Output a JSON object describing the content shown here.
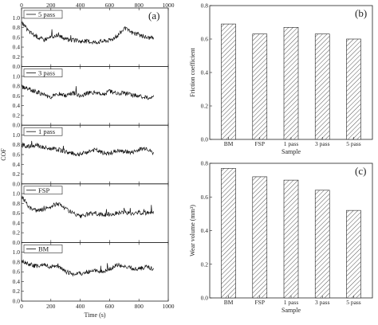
{
  "chart_data": [
    {
      "type": "line",
      "panel_label": "(a)",
      "xlabel": "Time (s)",
      "ylabel": "COF",
      "xlim": [
        0,
        1000
      ],
      "ylim": [
        0.0,
        1.2
      ],
      "x_ticks": [
        "0",
        "200",
        "400",
        "600",
        "800",
        "1000"
      ],
      "y_ticks": [
        "0.0",
        "0.2",
        "0.4",
        "0.6",
        "0.8",
        "1.0"
      ],
      "grid": false,
      "legend": "top-left in each subplot",
      "series": [
        {
          "name": "5 pass",
          "x": [
            0,
            50,
            100,
            150,
            200,
            250,
            300,
            350,
            400,
            450,
            500,
            550,
            600,
            650,
            700,
            750,
            800,
            850,
            900
          ],
          "values": [
            0.9,
            0.72,
            0.62,
            0.55,
            0.6,
            0.66,
            0.56,
            0.54,
            0.52,
            0.52,
            0.5,
            0.52,
            0.54,
            0.62,
            0.78,
            0.7,
            0.65,
            0.6,
            0.58
          ]
        },
        {
          "name": "3 pass",
          "x": [
            0,
            50,
            100,
            150,
            200,
            250,
            300,
            350,
            400,
            450,
            500,
            550,
            600,
            650,
            700,
            750,
            800,
            850,
            900
          ],
          "values": [
            0.78,
            0.74,
            0.68,
            0.62,
            0.58,
            0.64,
            0.6,
            0.66,
            0.6,
            0.65,
            0.68,
            0.62,
            0.7,
            0.64,
            0.66,
            0.62,
            0.6,
            0.56,
            0.58
          ]
        },
        {
          "name": "1 pass",
          "x": [
            0,
            50,
            100,
            150,
            200,
            250,
            300,
            350,
            400,
            450,
            500,
            550,
            600,
            650,
            700,
            750,
            800,
            850,
            900
          ],
          "values": [
            0.8,
            0.76,
            0.8,
            0.74,
            0.72,
            0.7,
            0.66,
            0.62,
            0.6,
            0.66,
            0.7,
            0.64,
            0.62,
            0.68,
            0.66,
            0.64,
            0.7,
            0.74,
            0.62
          ]
        },
        {
          "name": "FSP",
          "x": [
            0,
            50,
            100,
            150,
            200,
            250,
            300,
            350,
            400,
            450,
            500,
            550,
            600,
            650,
            700,
            750,
            800,
            850,
            900
          ],
          "values": [
            0.95,
            0.72,
            0.66,
            0.68,
            0.74,
            0.8,
            0.7,
            0.6,
            0.52,
            0.58,
            0.6,
            0.56,
            0.58,
            0.6,
            0.62,
            0.58,
            0.62,
            0.6,
            0.62
          ]
        },
        {
          "name": "BM",
          "x": [
            0,
            50,
            100,
            150,
            200,
            250,
            300,
            350,
            400,
            450,
            500,
            550,
            600,
            650,
            700,
            750,
            800,
            850,
            900
          ],
          "values": [
            0.82,
            0.76,
            0.72,
            0.74,
            0.7,
            0.72,
            0.6,
            0.56,
            0.56,
            0.6,
            0.62,
            0.6,
            0.66,
            0.74,
            0.7,
            0.68,
            0.66,
            0.7,
            0.66
          ]
        }
      ]
    },
    {
      "type": "bar",
      "panel_label": "(b)",
      "xlabel": "Sample",
      "ylabel": "Friction coefficient",
      "ylim": [
        0.0,
        0.8
      ],
      "y_ticks": [
        "0.0",
        "0.2",
        "0.4",
        "0.6",
        "0.8"
      ],
      "categories": [
        "BM",
        "FSP",
        "1 pass",
        "3 pass",
        "5 pass"
      ],
      "values": [
        0.69,
        0.63,
        0.67,
        0.63,
        0.6
      ]
    },
    {
      "type": "bar",
      "panel_label": "(c)",
      "xlabel": "Sample",
      "ylabel": "Wear volume (mm³)",
      "ylim": [
        0.0,
        0.8
      ],
      "y_ticks": [
        "0.0",
        "0.2",
        "0.4",
        "0.6",
        "0.8"
      ],
      "categories": [
        "BM",
        "FSP",
        "1 pass",
        "3 pass",
        "5 pass"
      ],
      "values": [
        0.77,
        0.72,
        0.7,
        0.64,
        0.52
      ]
    }
  ]
}
